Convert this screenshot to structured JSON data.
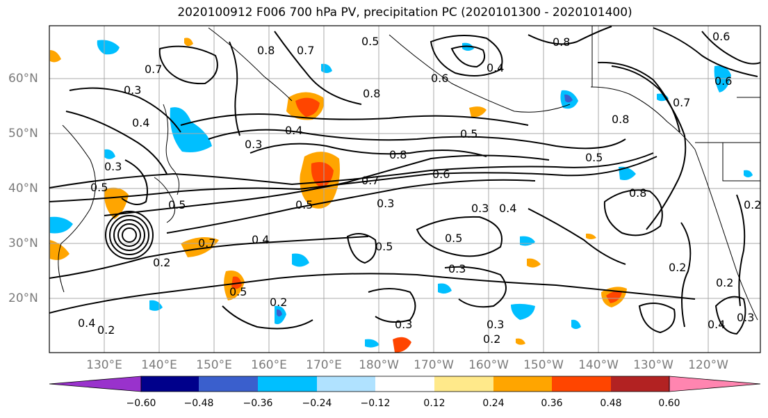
{
  "title": "2020100912 F006 700 hPa PV, precipitation PC (2020101300 - 2020101400)",
  "map": {
    "latitude_labels": [
      "60°N",
      "50°N",
      "40°N",
      "30°N",
      "20°N"
    ],
    "longitude_labels": [
      "130°E",
      "140°E",
      "150°E",
      "160°E",
      "170°E",
      "180°W",
      "170°W",
      "160°W",
      "150°W",
      "140°W",
      "130°W",
      "120°W"
    ],
    "pv_contour_labels": [
      "0.2",
      "0.3",
      "0.4",
      "0.5",
      "0.6",
      "0.7",
      "0.8"
    ]
  },
  "colorbar": {
    "ticks": [
      "−0.60",
      "−0.48",
      "−0.36",
      "−0.24",
      "−0.12",
      "0.12",
      "0.24",
      "0.36",
      "0.48",
      "0.60"
    ],
    "colors": [
      "#9932cc",
      "#00008b",
      "#3a5fcd",
      "#00bfff",
      "#b0e2ff",
      "#ffffff",
      "#ffe98a",
      "#ffa500",
      "#ff4500",
      "#b22222",
      "#ff85b0"
    ]
  }
}
